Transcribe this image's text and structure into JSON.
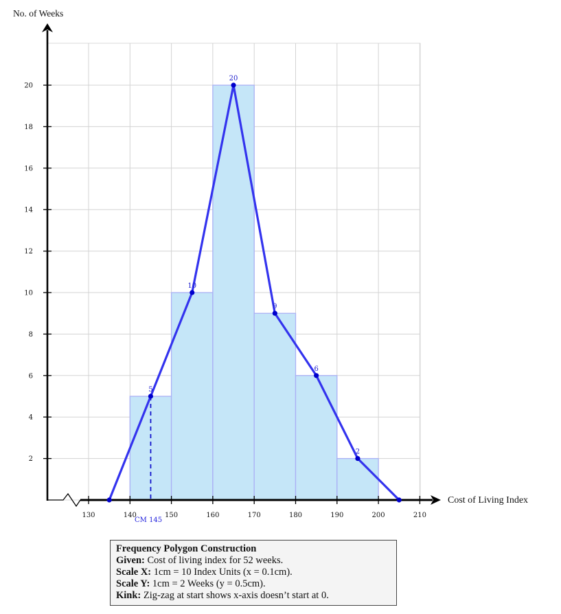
{
  "chart_data": {
    "type": "histogram+line",
    "title": "Frequency Polygon Construction",
    "xlabel": "Cost of Living Index",
    "ylabel": "No. of Weeks",
    "xlim": [
      120,
      210
    ],
    "ylim": [
      0,
      22
    ],
    "x_ticks": [
      130,
      140,
      150,
      160,
      170,
      180,
      190,
      200,
      210
    ],
    "y_ticks": [
      2,
      4,
      6,
      8,
      10,
      12,
      14,
      16,
      18,
      20
    ],
    "grid": true,
    "axis_break": "zig-zag near origin on x-axis",
    "histogram": {
      "bins": [
        [
          140,
          150
        ],
        [
          150,
          160
        ],
        [
          160,
          170
        ],
        [
          170,
          180
        ],
        [
          180,
          190
        ],
        [
          190,
          200
        ]
      ],
      "frequencies": [
        5,
        10,
        20,
        9,
        6,
        2
      ],
      "fill": "#c5e6f8",
      "stroke": "#aab0f5"
    },
    "polygon": {
      "x": [
        135,
        145,
        155,
        165,
        175,
        185,
        195,
        205
      ],
      "y": [
        0,
        5,
        10,
        20,
        9,
        6,
        2,
        0
      ],
      "point_labels": [
        "",
        "5",
        "10",
        "20",
        "9",
        "6",
        "2",
        ""
      ],
      "color": "#3333ee",
      "marker_color": "#0000cc"
    },
    "annotations": [
      {
        "text": "CM 145",
        "x": 145,
        "style": "dashed vertical line from point (145,5) to x-axis",
        "color": "#2222dd"
      }
    ]
  },
  "labels": {
    "y_axis_title": "No. of Weeks",
    "x_axis_title": "Cost of Living Index",
    "cm_label": "CM 145"
  },
  "note": {
    "title": "Frequency Polygon Construction",
    "lines": [
      {
        "key": "Given:",
        "text": " Cost of living index for 52 weeks."
      },
      {
        "key": "Scale X:",
        "text": " 1cm = 10 Index Units (x = 0.1cm)."
      },
      {
        "key": "Scale Y:",
        "text": " 1cm = 2 Weeks (y = 0.5cm)."
      },
      {
        "key": "Kink:",
        "text": " Zig-zag at start shows x-axis doesn’t start at 0."
      }
    ]
  }
}
